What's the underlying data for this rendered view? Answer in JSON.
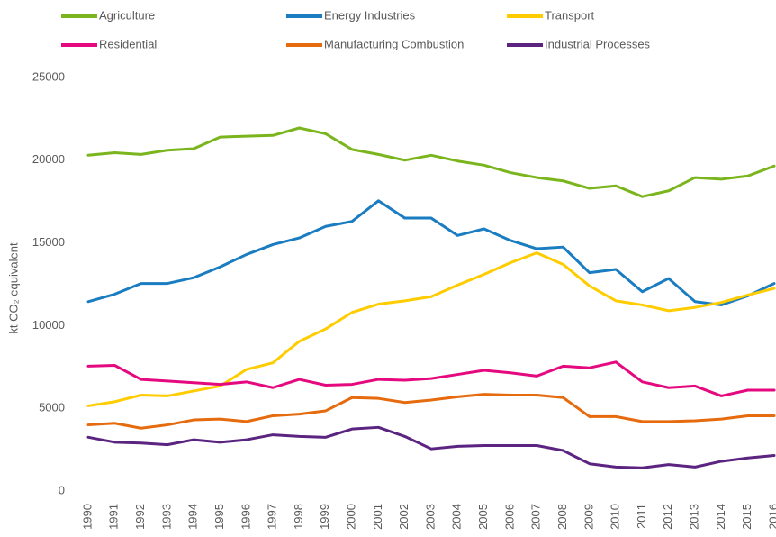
{
  "chart_data": {
    "type": "line",
    "ylabel": "kt CO₂ equivalent",
    "categories": [
      "1990",
      "1991",
      "1992",
      "1993",
      "1994",
      "1995",
      "1996",
      "1997",
      "1998",
      "1999",
      "2000",
      "2001",
      "2002",
      "2003",
      "2004",
      "2005",
      "2006",
      "2007",
      "2008",
      "2009",
      "2010",
      "2011",
      "2012",
      "2013",
      "2014",
      "2015",
      "2016"
    ],
    "ylim": [
      0,
      25000
    ],
    "yticks": [
      0,
      5000,
      10000,
      15000,
      20000,
      25000
    ],
    "grid": false,
    "legend": "top",
    "series": [
      {
        "name": "Agriculture",
        "color": "#7ab51d",
        "values": [
          20300,
          20450,
          20350,
          20600,
          20700,
          21400,
          21450,
          21500,
          21950,
          21600,
          20650,
          20350,
          20000,
          20300,
          19950,
          19700,
          19250,
          18950,
          18750,
          18300,
          18450,
          17800,
          18150,
          18950,
          18850,
          19050,
          19650
        ]
      },
      {
        "name": "Energy Industries",
        "color": "#1a7cc1",
        "values": [
          11450,
          11900,
          12550,
          12550,
          12900,
          13550,
          14300,
          14900,
          15300,
          16000,
          16300,
          17550,
          16500,
          16500,
          15450,
          15850,
          15150,
          14650,
          14750,
          13200,
          13400,
          12050,
          12850,
          11450,
          11250,
          11800,
          12550
        ]
      },
      {
        "name": "Transport",
        "color": "#ffcc00",
        "values": [
          5150,
          5400,
          5800,
          5750,
          6050,
          6350,
          7350,
          7750,
          9050,
          9800,
          10800,
          11300,
          11500,
          11750,
          12450,
          13100,
          13800,
          14400,
          13700,
          12400,
          11500,
          11250,
          10900,
          11100,
          11400,
          11850,
          12250
        ]
      },
      {
        "name": "Residential",
        "color": "#e5097f",
        "values": [
          7550,
          7600,
          6750,
          6650,
          6550,
          6450,
          6600,
          6250,
          6750,
          6400,
          6450,
          6750,
          6700,
          6800,
          7050,
          7300,
          7150,
          6950,
          7550,
          7450,
          7800,
          6600,
          6250,
          6350,
          5750,
          6100,
          6100
        ]
      },
      {
        "name": "Manufacturing Combustion",
        "color": "#e66b0f",
        "values": [
          4000,
          4100,
          3800,
          4000,
          4300,
          4350,
          4200,
          4550,
          4650,
          4850,
          5650,
          5600,
          5350,
          5500,
          5700,
          5850,
          5800,
          5800,
          5650,
          4500,
          4500,
          4200,
          4200,
          4250,
          4350,
          4550,
          4550
        ]
      },
      {
        "name": "Industrial Processes",
        "color": "#5b2480",
        "values": [
          3250,
          2950,
          2900,
          2800,
          3100,
          2950,
          3100,
          3400,
          3300,
          3250,
          3750,
          3850,
          3300,
          2550,
          2700,
          2750,
          2750,
          2750,
          2450,
          1650,
          1450,
          1400,
          1600,
          1450,
          1800,
          2000,
          2150
        ]
      }
    ]
  }
}
